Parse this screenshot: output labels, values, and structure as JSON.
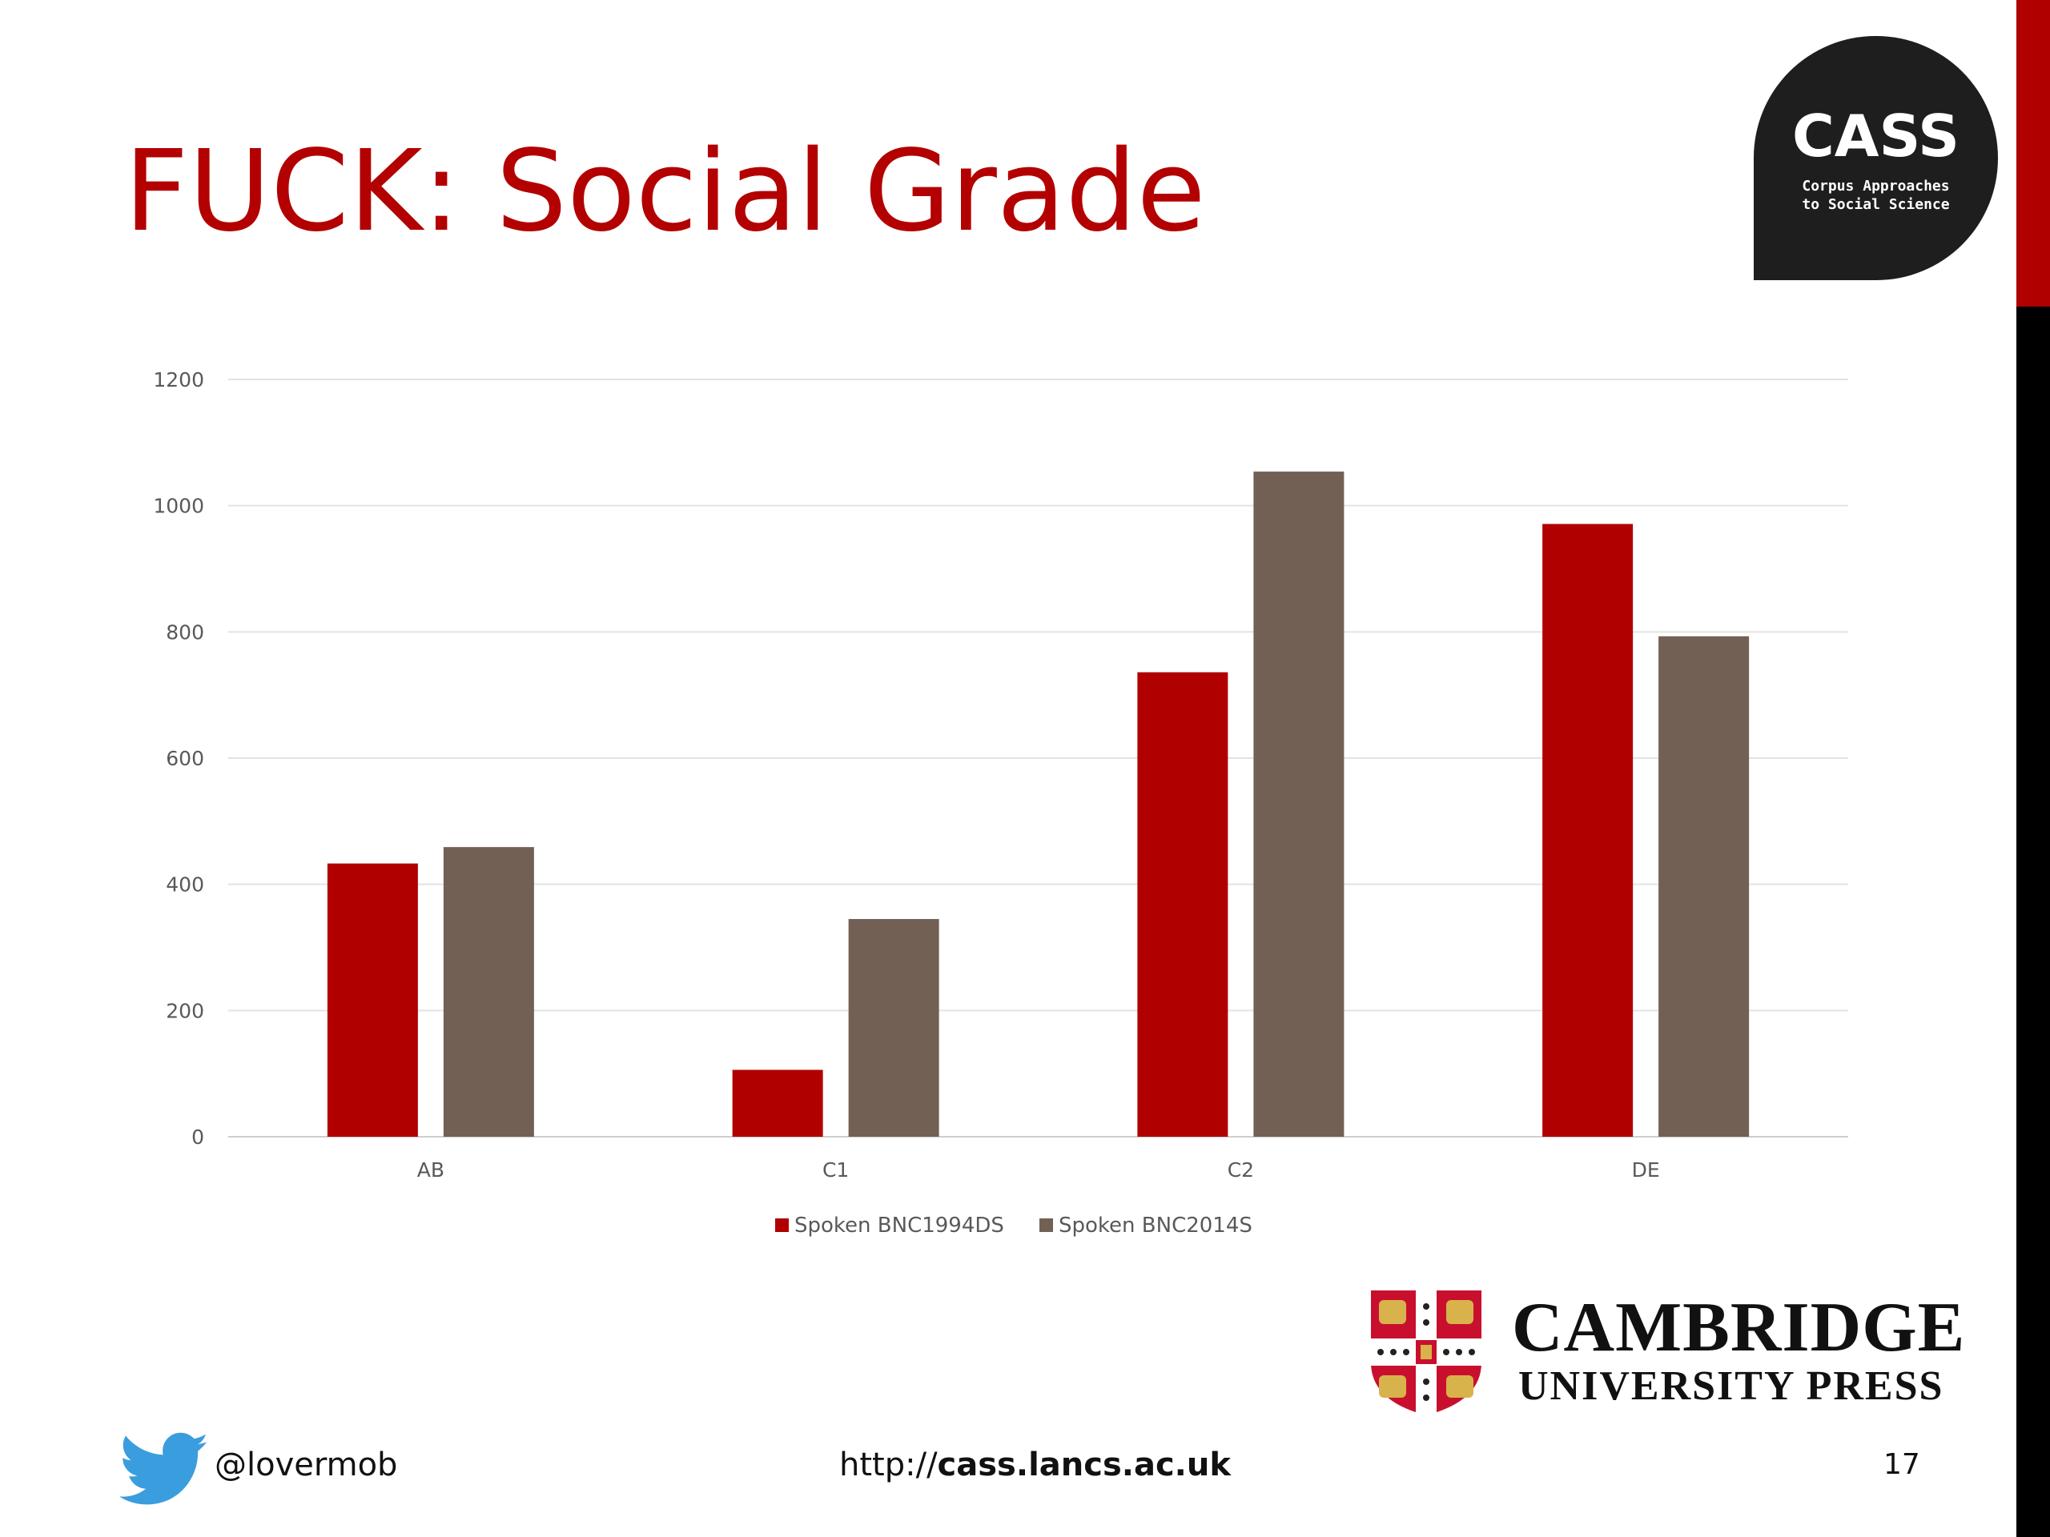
{
  "slide": {
    "title": "FUCK: Social Grade",
    "page_number": "17",
    "twitter_handle": "@lovermob",
    "url_prefix": "http://",
    "url_bold": "cass.lancs.ac.uk",
    "colors": {
      "title": "#b30000",
      "edge_top": "#b00000",
      "edge_bottom": "#000000"
    }
  },
  "cass_logo": {
    "name": "CASS",
    "subtitle": "Corpus Approaches\nto Social Science"
  },
  "cup_logo": {
    "line1": "CAMBRIDGE",
    "line2": "UNIVERSITY PRESS"
  },
  "icons": {
    "twitter": "twitter-bird-icon",
    "shield": "cambridge-shield-icon"
  },
  "chart_data": {
    "type": "bar",
    "categories": [
      "AB",
      "C1",
      "C2",
      "DE"
    ],
    "series": [
      {
        "name": "Spoken BNC1994DS",
        "color": "#b00000",
        "values": [
          433,
          106,
          736,
          971
        ]
      },
      {
        "name": "Spoken BNC2014S",
        "color": "#736055",
        "values": [
          459,
          345,
          1054,
          793
        ]
      }
    ],
    "ylim": [
      0,
      1200
    ],
    "yticks": [
      0,
      200,
      400,
      600,
      800,
      1000,
      1200
    ],
    "grid": true,
    "legend": "bottom",
    "title": "",
    "xlabel": "",
    "ylabel": ""
  }
}
